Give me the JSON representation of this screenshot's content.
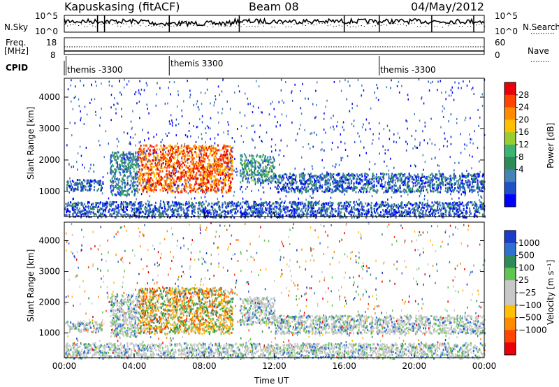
{
  "header": {
    "station": "Kapuskasing (fitACF)",
    "beam": "Beam 08",
    "date": "04/May/2012"
  },
  "side_labels": {
    "nsky": "N.Sky",
    "freq": "Freq.",
    "freq_unit": "[MHz]",
    "cpid": "CPID",
    "nsearch": "N.Search",
    "nave": "Nave"
  },
  "noise_panel": {
    "y_top_left": "10^5",
    "y_bottom_left": "10^0",
    "y_top_right": "10^5",
    "y_bottom_right": "10^0"
  },
  "freq_panel": {
    "y_top_left": "18",
    "y_bottom_left": "8",
    "y_top_right": "60",
    "y_bottom_right": "0"
  },
  "cpid_labels": [
    {
      "label": "themis -3300",
      "hour": 0.1
    },
    {
      "label": "themis 3300",
      "hour": 6.0
    },
    {
      "label": "themis -3300",
      "hour": 18.0
    }
  ],
  "power_colorbar": {
    "title": "Power [dB]",
    "ticks": [
      "28",
      "24",
      "20",
      "16",
      "12",
      "8",
      "4"
    ],
    "colors": [
      "#e8000b",
      "#ff4500",
      "#ff8c00",
      "#ffc000",
      "#9acd32",
      "#3cb371",
      "#2e8b57",
      "#4682b4",
      "#1e50c8",
      "#0000ff"
    ]
  },
  "velocity_colorbar": {
    "title": "Velocity [m s⁻¹]",
    "ticks": [
      "1000",
      "500",
      "100",
      "25",
      "−25",
      "−100",
      "−500",
      "−1000"
    ],
    "colors": [
      "#1a3cc8",
      "#2f6fd0",
      "#2e8b57",
      "#5fc450",
      "#c8c8c8",
      "#c8c8c8",
      "#ffc000",
      "#ff8c00",
      "#ff4500",
      "#e8000b"
    ]
  },
  "chart_data": {
    "type": "heatmap",
    "title": "Kapuskasing (fitACF) Beam 08 04/May/2012",
    "xlabel": "Time UT",
    "x_ticks": [
      "00:00",
      "04:00",
      "08:00",
      "12:00",
      "16:00",
      "20:00",
      "00:00"
    ],
    "xlim": [
      0,
      24
    ],
    "ylabel": "Slant Range [km]",
    "y_ticks": [
      1000,
      2000,
      3000,
      4000
    ],
    "ylim": [
      200,
      4600
    ],
    "panels": [
      {
        "name": "power",
        "colorbar": "Power [dB]",
        "range": [
          0,
          30
        ]
      },
      {
        "name": "velocity",
        "colorbar": "Velocity [m s-1]",
        "range": [
          -1000,
          1000
        ]
      }
    ],
    "echo_regions": [
      {
        "t_start": 0.1,
        "t_end": 2.2,
        "r_low": 1050,
        "r_high": 1400,
        "power_db": 6,
        "velocity": 0
      },
      {
        "t_start": 2.6,
        "t_end": 4.2,
        "r_low": 900,
        "r_high": 2300,
        "power_db": 8,
        "velocity": 0
      },
      {
        "t_start": 4.2,
        "t_end": 9.6,
        "r_low": 1000,
        "r_high": 2500,
        "power_db": 24,
        "velocity": -200
      },
      {
        "t_start": 10.0,
        "t_end": 12.0,
        "r_low": 1300,
        "r_high": 2200,
        "power_db": 10,
        "velocity": 0
      },
      {
        "t_start": 12.0,
        "t_end": 24.0,
        "r_low": 1000,
        "r_high": 1600,
        "power_db": 6,
        "velocity": 0
      },
      {
        "t_start": 0.0,
        "t_end": 24.0,
        "r_low": 200,
        "r_high": 700,
        "power_db": 5,
        "velocity": 0
      }
    ]
  }
}
